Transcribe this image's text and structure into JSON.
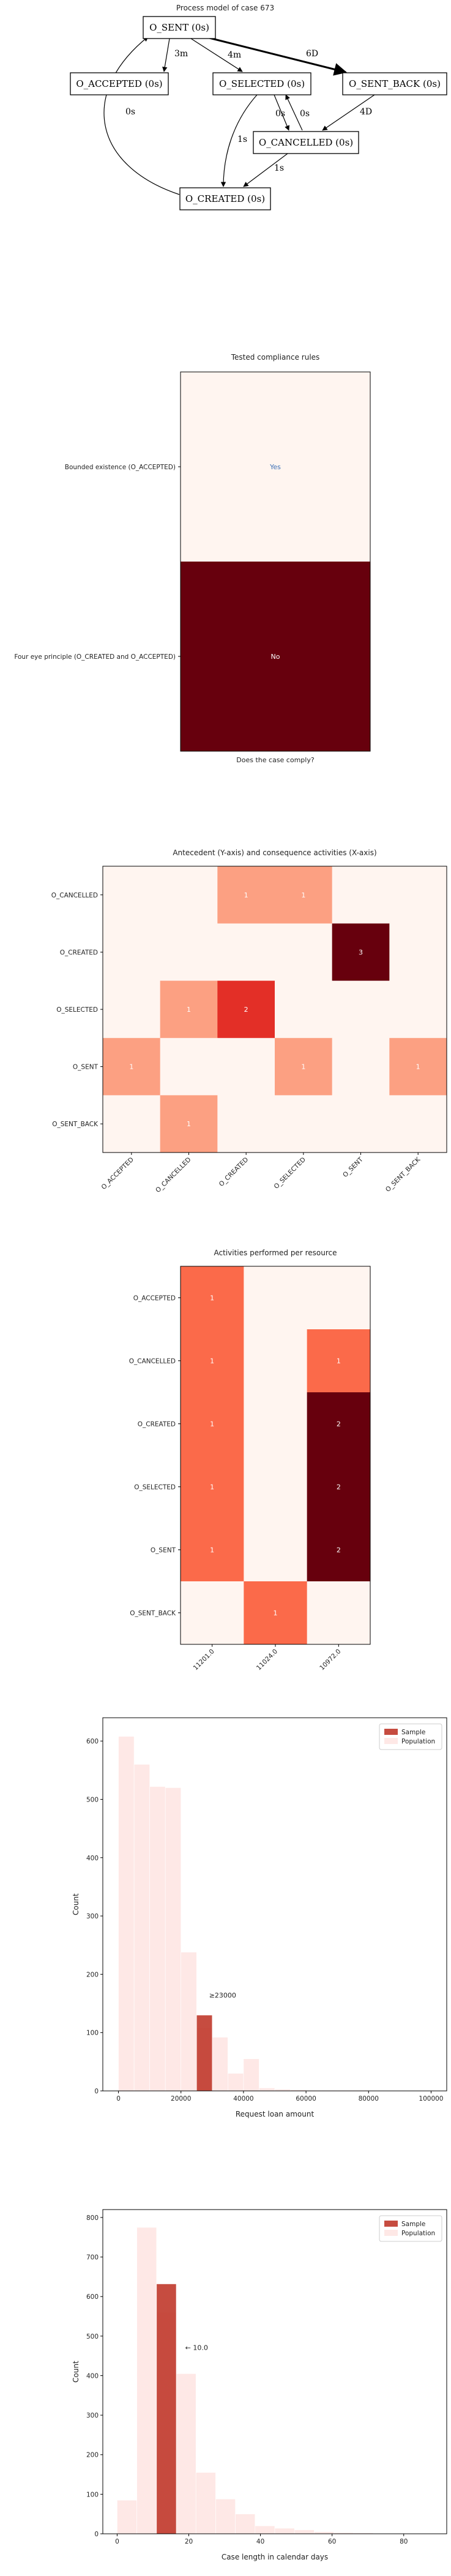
{
  "process_model": {
    "title": "Process model of case 673",
    "nodes": [
      {
        "id": "sent",
        "label": "O_SENT (0s)"
      },
      {
        "id": "accepted",
        "label": "O_ACCEPTED (0s)"
      },
      {
        "id": "selected",
        "label": "O_SELECTED (0s)"
      },
      {
        "id": "sent_back",
        "label": "O_SENT_BACK (0s)"
      },
      {
        "id": "cancelled",
        "label": "O_CANCELLED (0s)"
      },
      {
        "id": "created",
        "label": "O_CREATED (0s)"
      }
    ],
    "edges": [
      {
        "from": "sent",
        "to": "accepted",
        "label": "3m"
      },
      {
        "from": "sent",
        "to": "selected",
        "label": "4m"
      },
      {
        "from": "sent",
        "to": "sent_back",
        "label": "6D"
      },
      {
        "from": "selected",
        "to": "cancelled",
        "label": "0s"
      },
      {
        "from": "cancelled",
        "to": "selected",
        "label": "0s"
      },
      {
        "from": "sent_back",
        "to": "cancelled",
        "label": "4D"
      },
      {
        "from": "selected",
        "to": "created",
        "label": "1s"
      },
      {
        "from": "cancelled",
        "to": "created",
        "label": "1s"
      },
      {
        "from": "created",
        "to": "sent",
        "label": "0s"
      }
    ]
  },
  "compliance": {
    "title": "Tested compliance rules",
    "rules": [
      "Bounded existence (O_ACCEPTED)",
      "Four eye principle (O_CREATED and O_ACCEPTED)"
    ],
    "answers": [
      "Yes",
      "No"
    ],
    "xlabel": "Does the case comply?"
  },
  "chart_data": [
    {
      "type": "heatmap",
      "title": "Antecedent (Y-axis) and consequence activities (X-axis)",
      "rows": [
        "O_CANCELLED",
        "O_CREATED",
        "O_SELECTED",
        "O_SENT",
        "O_SENT_BACK"
      ],
      "columns": [
        "O_ACCEPTED",
        "O_CANCELLED",
        "O_CREATED",
        "O_SELECTED",
        "O_SENT",
        "O_SENT_BACK"
      ],
      "values": [
        [
          0,
          0,
          1,
          1,
          0,
          0
        ],
        [
          0,
          0,
          0,
          0,
          3,
          0
        ],
        [
          0,
          1,
          2,
          0,
          0,
          0
        ],
        [
          1,
          0,
          0,
          1,
          0,
          1
        ],
        [
          0,
          1,
          0,
          0,
          0,
          0
        ]
      ]
    },
    {
      "type": "heatmap",
      "title": "Activities performed per resource",
      "rows": [
        "O_ACCEPTED",
        "O_CANCELLED",
        "O_CREATED",
        "O_SELECTED",
        "O_SENT",
        "O_SENT_BACK"
      ],
      "columns": [
        "11201.0",
        "11024.0",
        "10972.0"
      ],
      "values": [
        [
          1,
          0,
          0
        ],
        [
          1,
          0,
          1
        ],
        [
          1,
          0,
          2
        ],
        [
          1,
          0,
          2
        ],
        [
          1,
          0,
          2
        ],
        [
          0,
          1,
          0
        ]
      ]
    },
    {
      "type": "bar",
      "xlabel": "Request loan amount",
      "ylabel": "Count",
      "xlim": [
        -5000,
        105000
      ],
      "ylim": [
        0,
        640
      ],
      "xticks": [
        0,
        20000,
        40000,
        60000,
        80000,
        100000
      ],
      "yticks": [
        0,
        100,
        200,
        300,
        400,
        500,
        600
      ],
      "bin_width": 5000,
      "series": [
        {
          "name": "Sample",
          "color": "#c0392b",
          "bins": [
            {
              "x0": 25000,
              "count": 130
            }
          ]
        },
        {
          "name": "Population",
          "color": "#fde0dd",
          "bins": [
            {
              "x0": 0,
              "count": 608
            },
            {
              "x0": 5000,
              "count": 560
            },
            {
              "x0": 10000,
              "count": 522
            },
            {
              "x0": 15000,
              "count": 520
            },
            {
              "x0": 20000,
              "count": 238
            },
            {
              "x0": 25000,
              "count": 108
            },
            {
              "x0": 30000,
              "count": 92
            },
            {
              "x0": 35000,
              "count": 30
            },
            {
              "x0": 40000,
              "count": 55
            },
            {
              "x0": 45000,
              "count": 5
            },
            {
              "x0": 50000,
              "count": 3
            },
            {
              "x0": 55000,
              "count": 2
            },
            {
              "x0": 60000,
              "count": 1
            },
            {
              "x0": 65000,
              "count": 1
            },
            {
              "x0": 70000,
              "count": 1
            },
            {
              "x0": 75000,
              "count": 1
            }
          ]
        }
      ],
      "annotation": {
        "text": "≥23000",
        "x": 29000,
        "y": 160
      }
    },
    {
      "type": "bar",
      "xlabel": "Case length in calendar days",
      "ylabel": "Count",
      "xlim": [
        -4,
        92
      ],
      "ylim": [
        0,
        820
      ],
      "xticks": [
        0,
        20,
        40,
        60,
        80
      ],
      "yticks": [
        0,
        100,
        200,
        300,
        400,
        500,
        600,
        700,
        800
      ],
      "bin_width": 5.5,
      "series": [
        {
          "name": "Sample",
          "color": "#c0392b",
          "bins": [
            {
              "x0": 11,
              "count": 632
            }
          ]
        },
        {
          "name": "Population",
          "color": "#fde0dd",
          "bins": [
            {
              "x0": 0,
              "count": 85
            },
            {
              "x0": 5.5,
              "count": 775
            },
            {
              "x0": 11,
              "count": 560
            },
            {
              "x0": 16.5,
              "count": 405
            },
            {
              "x0": 22,
              "count": 155
            },
            {
              "x0": 27.5,
              "count": 88
            },
            {
              "x0": 33,
              "count": 50
            },
            {
              "x0": 38.5,
              "count": 20
            },
            {
              "x0": 44,
              "count": 14
            },
            {
              "x0": 49.5,
              "count": 10
            },
            {
              "x0": 55,
              "count": 5
            },
            {
              "x0": 60.5,
              "count": 3
            },
            {
              "x0": 66,
              "count": 2
            },
            {
              "x0": 71.5,
              "count": 1
            },
            {
              "x0": 77,
              "count": 1
            }
          ]
        }
      ],
      "annotation": {
        "text": "← 10.0",
        "x": 19,
        "y": 465
      }
    }
  ]
}
